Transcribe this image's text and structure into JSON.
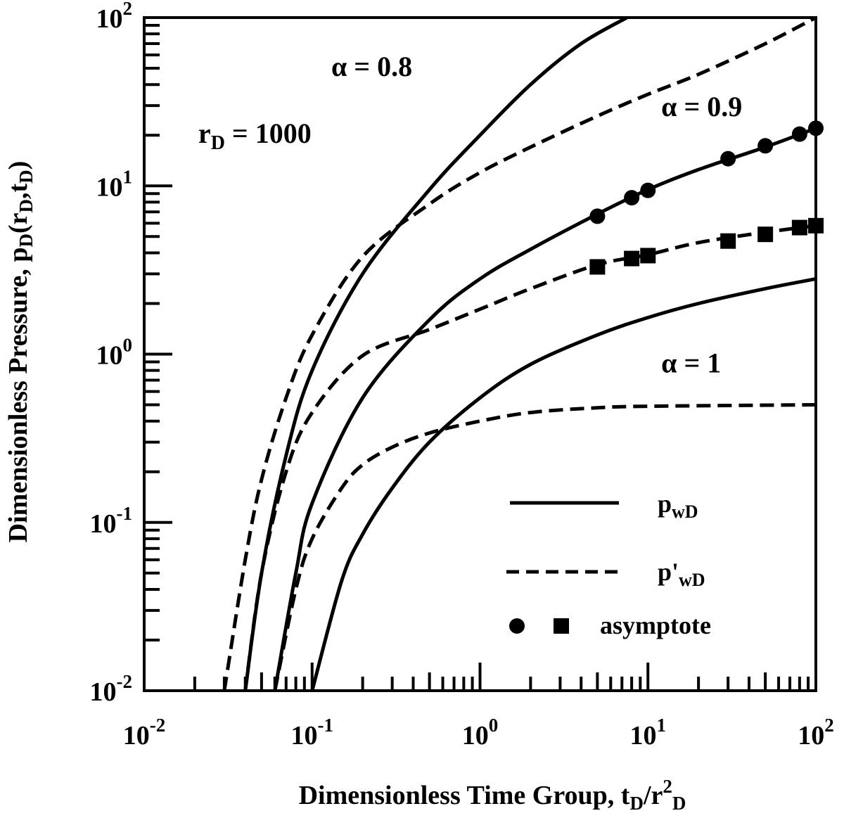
{
  "chart_data": {
    "type": "line",
    "title": "",
    "xlabel": "Dimensionless Time Group, t_D/r^2_D",
    "ylabel": "Dimensionless Pressure, p_D(r_D,t_D)",
    "xscale": "log",
    "yscale": "log",
    "xlim": [
      0.01,
      100
    ],
    "ylim": [
      0.01,
      100
    ],
    "x_ticks": [
      {
        "value": 0.01,
        "base": "10",
        "exp": "-2"
      },
      {
        "value": 0.1,
        "base": "10",
        "exp": "-1"
      },
      {
        "value": 1,
        "base": "10",
        "exp": "0"
      },
      {
        "value": 10,
        "base": "10",
        "exp": "1"
      },
      {
        "value": 100,
        "base": "10",
        "exp": "2"
      }
    ],
    "y_ticks": [
      {
        "value": 0.01,
        "base": "10",
        "exp": "-2"
      },
      {
        "value": 0.1,
        "base": "10",
        "exp": "-1"
      },
      {
        "value": 1,
        "base": "10",
        "exp": "0"
      },
      {
        "value": 10,
        "base": "10",
        "exp": "1"
      },
      {
        "value": 100,
        "base": "10",
        "exp": "2"
      }
    ],
    "annotations": [
      {
        "text": "α = 0.8",
        "x": 0.13,
        "y": 45
      },
      {
        "text": "α = 0.9",
        "x": 12,
        "y": 26
      },
      {
        "text": "α = 1",
        "x": 12,
        "y": 0.78
      },
      {
        "text": "r_D = 1000",
        "x": 0.021,
        "y": 18
      }
    ],
    "legend": {
      "position": "bottom-right",
      "entries": [
        {
          "label": "p_wD",
          "style": "solid"
        },
        {
          "label": "p'_wD",
          "style": "dashed"
        },
        {
          "label": "asymptote",
          "style": "markers"
        }
      ]
    },
    "series": [
      {
        "alpha": "0.8",
        "kind": "p_wD",
        "style": "solid",
        "x": [
          0.04,
          0.05,
          0.07,
          0.1,
          0.2,
          0.5,
          1,
          2,
          4,
          7.5
        ],
        "y": [
          0.01,
          0.05,
          0.25,
          0.8,
          3.0,
          9.5,
          20,
          40,
          70,
          100
        ]
      },
      {
        "alpha": "0.8",
        "kind": "p'_wD",
        "style": "dashed",
        "x": [
          0.03,
          0.04,
          0.05,
          0.07,
          0.1,
          0.2,
          0.5,
          1,
          2,
          5,
          10,
          20,
          50,
          100
        ],
        "y": [
          0.01,
          0.06,
          0.18,
          0.55,
          1.3,
          3.8,
          7.8,
          12,
          17,
          26,
          35,
          46,
          70,
          100
        ]
      },
      {
        "alpha": "0.9",
        "kind": "p_wD",
        "style": "solid",
        "x": [
          0.06,
          0.08,
          0.1,
          0.2,
          0.5,
          1,
          2,
          5,
          10,
          20,
          50,
          100
        ],
        "y": [
          0.01,
          0.05,
          0.13,
          0.55,
          1.6,
          2.8,
          4.2,
          6.8,
          9.5,
          12.5,
          17,
          22
        ]
      },
      {
        "alpha": "0.9",
        "kind": "p'_wD",
        "style": "dashed",
        "x": [
          0.04,
          0.05,
          0.07,
          0.1,
          0.2,
          0.5,
          1,
          2,
          5,
          10,
          20,
          50,
          100
        ],
        "y": [
          0.01,
          0.05,
          0.2,
          0.45,
          0.98,
          1.4,
          1.85,
          2.45,
          3.4,
          3.9,
          4.6,
          5.3,
          5.8
        ]
      },
      {
        "alpha": "1",
        "kind": "p_wD",
        "style": "solid",
        "x": [
          0.1,
          0.15,
          0.2,
          0.3,
          0.5,
          1,
          2,
          5,
          10,
          20,
          50,
          100
        ],
        "y": [
          0.01,
          0.045,
          0.085,
          0.16,
          0.3,
          0.55,
          0.87,
          1.3,
          1.65,
          2.0,
          2.45,
          2.8
        ]
      },
      {
        "alpha": "1",
        "kind": "p'_wD",
        "style": "dashed",
        "x": [
          0.06,
          0.08,
          0.1,
          0.15,
          0.2,
          0.3,
          0.5,
          1,
          2,
          5,
          10,
          100
        ],
        "y": [
          0.01,
          0.04,
          0.08,
          0.16,
          0.22,
          0.28,
          0.34,
          0.4,
          0.45,
          0.48,
          0.49,
          0.5
        ]
      }
    ],
    "asymptote_circles": {
      "x": [
        5,
        8,
        10,
        30,
        50,
        80,
        100
      ],
      "y": [
        6.6,
        8.5,
        9.4,
        14.5,
        17.3,
        20.3,
        22
      ]
    },
    "asymptote_squares": {
      "x": [
        5,
        8,
        10,
        30,
        50,
        80,
        100
      ],
      "y": [
        3.3,
        3.7,
        3.85,
        4.7,
        5.15,
        5.65,
        5.8
      ]
    }
  }
}
